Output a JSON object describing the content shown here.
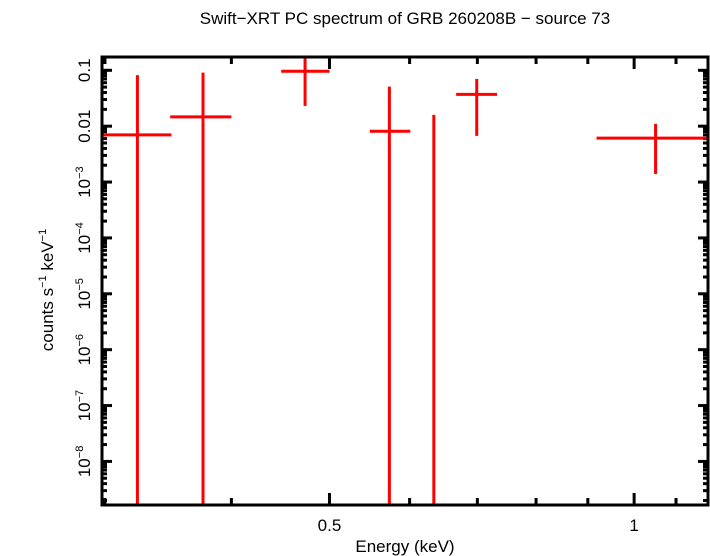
{
  "chart_data": {
    "type": "scatter",
    "title": "Swift−XRT PC spectrum of GRB 260208B − source 73",
    "xlabel": "Energy (keV)",
    "ylabel": {
      "base": "counts s",
      "exp1": "−1",
      "mid": " keV",
      "exp2": "−1"
    },
    "xscale": "log",
    "yscale": "log",
    "xlim": [
      0.298,
      1.183
    ],
    "ylim": [
      1.66e-09,
      0.173
    ],
    "grid": false,
    "color": "#ff0000",
    "x_ticks": [
      {
        "value": 0.5,
        "label": "0.5"
      },
      {
        "value": 1,
        "label": "1"
      }
    ],
    "x_minor_ticks": [
      0.3,
      0.4,
      0.6,
      0.7,
      0.8,
      0.9,
      1.1
    ],
    "y_ticks": [
      {
        "value": 0.1,
        "label": "0.1",
        "exp": ""
      },
      {
        "value": 0.01,
        "label": "0.01",
        "exp": ""
      },
      {
        "value": 0.001,
        "label": "10",
        "exp": "−3"
      },
      {
        "value": 0.0001,
        "label": "10",
        "exp": "−4"
      },
      {
        "value": 1e-05,
        "label": "10",
        "exp": "−5"
      },
      {
        "value": 1e-06,
        "label": "10",
        "exp": "−6"
      },
      {
        "value": 1e-07,
        "label": "10",
        "exp": "−7"
      },
      {
        "value": 1e-08,
        "label": "10",
        "exp": "−8"
      }
    ],
    "points": [
      {
        "x": 0.323,
        "xlo": 0.298,
        "xhi": 0.349,
        "y": 0.007,
        "ylo": null,
        "yhi": 0.082
      },
      {
        "x": 0.375,
        "xlo": 0.348,
        "xhi": 0.4,
        "y": 0.0147,
        "ylo": null,
        "yhi": 0.091
      },
      {
        "x": 0.473,
        "xlo": 0.448,
        "xhi": 0.5,
        "y": 0.096,
        "ylo": 0.023,
        "yhi": 0.2
      },
      {
        "x": 0.573,
        "xlo": 0.548,
        "xhi": 0.601,
        "y": 0.0081,
        "ylo": null,
        "yhi": 0.051
      },
      {
        "x": 0.634,
        "xlo": null,
        "xhi": null,
        "y": null,
        "ylo": null,
        "yhi": 0.0159
      },
      {
        "x": 0.699,
        "xlo": 0.667,
        "xhi": 0.732,
        "y": 0.037,
        "ylo": 0.0067,
        "yhi": 0.07
      },
      {
        "x": 1.05,
        "xlo": 0.918,
        "xhi": 1.25,
        "y": 0.0061,
        "ylo": 0.00139,
        "yhi": 0.011
      }
    ]
  }
}
